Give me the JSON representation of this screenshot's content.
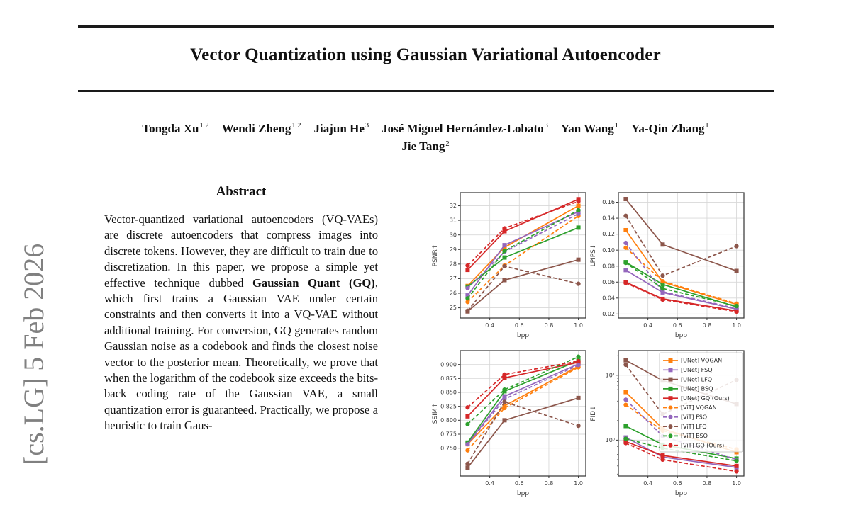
{
  "watermark": {
    "text": "[cs.LG] 5 Feb 2026",
    "color": "#808080"
  },
  "title": "Vector Quantization using Gaussian Variational Autoencoder",
  "authors": {
    "rows": [
      [
        {
          "name": "Tongda Xu",
          "sup": "1 2"
        },
        {
          "name": "Wendi Zheng",
          "sup": "1 2"
        },
        {
          "name": "Jiajun He",
          "sup": "3"
        },
        {
          "name": "José Miguel Hernández-Lobato",
          "sup": "3"
        },
        {
          "name": "Yan Wang",
          "sup": "1"
        },
        {
          "name": "Ya-Qin Zhang",
          "sup": "1"
        }
      ],
      [
        {
          "name": "Jie Tang",
          "sup": "2"
        }
      ]
    ]
  },
  "abstract": {
    "heading": "Abstract",
    "parts": [
      {
        "text": "Vector-quantized variational autoencoders (VQ-VAEs) are discrete autoencoders that compress images into discrete tokens. However, they are difficult to train due to discretization. In this paper, we propose a simple yet effective technique dubbed ",
        "bold": false
      },
      {
        "text": "Gaussian Quant (GQ)",
        "bold": true
      },
      {
        "text": ", which first trains a Gaussian VAE under certain constraints and then converts it into a VQ-VAE without additional training. For conversion, GQ generates random Gaussian noise as a codebook and finds the closest noise vector to the posterior mean. Theoretically, we prove that when the logarithm of the codebook size exceeds the bits-back coding rate of the Gaussian VAE, a small quantization error is guaranteed. Practically, we propose a heuristic to train Gaus-",
        "bold": false
      }
    ]
  },
  "series_defs": [
    {
      "name": "[UNet] VQGAN",
      "color": "#ff7f0e",
      "dashed": false,
      "marker": "square"
    },
    {
      "name": "[UNet] FSQ",
      "color": "#9467bd",
      "dashed": false,
      "marker": "square"
    },
    {
      "name": "[UNet] LFQ",
      "color": "#8c564b",
      "dashed": false,
      "marker": "square"
    },
    {
      "name": "[UNet] BSQ",
      "color": "#2ca02c",
      "dashed": false,
      "marker": "square"
    },
    {
      "name": "[UNet] GQ (Ours)",
      "color": "#d62728",
      "dashed": false,
      "marker": "square"
    },
    {
      "name": "[ViT] VQGAN",
      "color": "#ff7f0e",
      "dashed": true,
      "marker": "circle"
    },
    {
      "name": "[ViT] FSQ",
      "color": "#9467bd",
      "dashed": true,
      "marker": "circle"
    },
    {
      "name": "[ViT] LFQ",
      "color": "#8c564b",
      "dashed": true,
      "marker": "circle"
    },
    {
      "name": "[ViT] BSQ",
      "color": "#2ca02c",
      "dashed": true,
      "marker": "circle"
    },
    {
      "name": "[ViT] GQ (Ours)",
      "color": "#d62728",
      "dashed": true,
      "marker": "circle"
    }
  ],
  "chart_data": [
    {
      "type": "line",
      "name": "psnr",
      "grid": true,
      "log": false,
      "legend": false,
      "xlabel": "bpp",
      "ylabel": "PSNR↑",
      "x": [
        0.25,
        0.5,
        1.0
      ],
      "xlim": [
        0.2,
        1.05
      ],
      "xticks": [
        0.4,
        0.6,
        0.8,
        1.0
      ],
      "xtick_labels": [
        "0.4",
        "0.6",
        "0.8",
        "1.0"
      ],
      "ylim": [
        24.3,
        32.9
      ],
      "yticks": [
        25,
        26,
        27,
        28,
        29,
        30,
        31,
        32
      ],
      "ytick_labels": [
        "25",
        "26",
        "27",
        "28",
        "29",
        "30",
        "31",
        "32"
      ],
      "series": [
        {
          "name": "[UNet] VQGAN",
          "values": [
            26.5,
            29.15,
            32.0
          ]
        },
        {
          "name": "[UNet] FSQ",
          "values": [
            25.85,
            29.3,
            31.6
          ]
        },
        {
          "name": "[UNet] LFQ",
          "values": [
            24.75,
            26.9,
            28.3
          ]
        },
        {
          "name": "[UNet] BSQ",
          "values": [
            26.45,
            28.45,
            30.5
          ]
        },
        {
          "name": "[UNet] GQ (Ours)",
          "values": [
            27.6,
            30.25,
            32.45
          ]
        },
        {
          "name": "[ViT] VQGAN",
          "values": [
            25.4,
            27.9,
            31.3
          ]
        },
        {
          "name": "[ViT] FSQ",
          "values": [
            26.35,
            28.85,
            31.45
          ]
        },
        {
          "name": "[ViT] LFQ",
          "values": [
            24.8,
            27.85,
            26.65
          ]
        },
        {
          "name": "[ViT] BSQ",
          "values": [
            25.65,
            28.9,
            31.7
          ]
        },
        {
          "name": "[ViT] GQ (Ours)",
          "values": [
            27.9,
            30.45,
            32.3
          ]
        }
      ]
    },
    {
      "type": "line",
      "name": "lpips",
      "grid": true,
      "log": false,
      "legend": false,
      "xlabel": "bpp",
      "ylabel": "LPIPS↓",
      "x": [
        0.25,
        0.5,
        1.0
      ],
      "xlim": [
        0.2,
        1.05
      ],
      "xticks": [
        0.4,
        0.6,
        0.8,
        1.0
      ],
      "xtick_labels": [
        "0.4",
        "0.6",
        "0.8",
        "1.0"
      ],
      "ylim": [
        0.015,
        0.172
      ],
      "yticks": [
        0.02,
        0.04,
        0.06,
        0.08,
        0.1,
        0.12,
        0.14,
        0.16
      ],
      "ytick_labels": [
        "0.02",
        "0.04",
        "0.06",
        "0.08",
        "0.10",
        "0.12",
        "0.14",
        "0.16"
      ],
      "series": [
        {
          "name": "[UNet] VQGAN",
          "values": [
            0.125,
            0.06,
            0.032
          ]
        },
        {
          "name": "[UNet] FSQ",
          "values": [
            0.075,
            0.047,
            0.026
          ]
        },
        {
          "name": "[UNet] LFQ",
          "values": [
            0.164,
            0.107,
            0.074
          ]
        },
        {
          "name": "[UNet] BSQ",
          "values": [
            0.085,
            0.057,
            0.029
          ]
        },
        {
          "name": "[UNet] GQ (Ours)",
          "values": [
            0.06,
            0.039,
            0.024
          ]
        },
        {
          "name": "[ViT] VQGAN",
          "values": [
            0.103,
            0.061,
            0.033
          ]
        },
        {
          "name": "[ViT] FSQ",
          "values": [
            0.109,
            0.048,
            0.027
          ]
        },
        {
          "name": "[ViT] LFQ",
          "values": [
            0.143,
            0.068,
            0.105
          ]
        },
        {
          "name": "[ViT] BSQ",
          "values": [
            0.084,
            0.052,
            0.03
          ]
        },
        {
          "name": "[ViT] GQ (Ours)",
          "values": [
            0.059,
            0.038,
            0.023
          ]
        }
      ]
    },
    {
      "type": "line",
      "name": "ssim",
      "grid": true,
      "log": false,
      "legend": false,
      "xlabel": "bpp",
      "ylabel": "SSIM↑",
      "x": [
        0.25,
        0.5,
        1.0
      ],
      "xlim": [
        0.2,
        1.05
      ],
      "xticks": [
        0.4,
        0.6,
        0.8,
        1.0
      ],
      "xtick_labels": [
        "0.4",
        "0.6",
        "0.8",
        "1.0"
      ],
      "ylim": [
        0.7,
        0.925
      ],
      "yticks": [
        0.75,
        0.775,
        0.8,
        0.825,
        0.85,
        0.875,
        0.9
      ],
      "ytick_labels": [
        "0.750",
        "0.775",
        "0.800",
        "0.825",
        "0.850",
        "0.875",
        "0.900"
      ],
      "series": [
        {
          "name": "[UNet] VQGAN",
          "values": [
            0.757,
            0.826,
            0.897
          ]
        },
        {
          "name": "[UNet] FSQ",
          "values": [
            0.758,
            0.843,
            0.901
          ]
        },
        {
          "name": "[UNet] LFQ",
          "values": [
            0.715,
            0.8,
            0.84
          ]
        },
        {
          "name": "[UNet] BSQ",
          "values": [
            0.76,
            0.852,
            0.907
          ]
        },
        {
          "name": "[UNet] GQ (Ours)",
          "values": [
            0.807,
            0.876,
            0.904
          ]
        },
        {
          "name": "[ViT] VQGAN",
          "values": [
            0.746,
            0.822,
            0.895
          ]
        },
        {
          "name": "[ViT] FSQ",
          "values": [
            0.757,
            0.838,
            0.899
          ]
        },
        {
          "name": "[ViT] LFQ",
          "values": [
            0.722,
            0.833,
            0.79
          ]
        },
        {
          "name": "[ViT] BSQ",
          "values": [
            0.793,
            0.855,
            0.914
          ]
        },
        {
          "name": "[ViT] GQ (Ours)",
          "values": [
            0.823,
            0.882,
            0.906
          ]
        }
      ]
    },
    {
      "type": "line",
      "name": "fid",
      "grid": true,
      "log": true,
      "legend": true,
      "legend_position": "upper right",
      "xlabel": "bpp",
      "ylabel": "FID↓",
      "x": [
        0.25,
        0.5,
        1.0
      ],
      "xlim": [
        0.2,
        1.05
      ],
      "xticks": [
        0.4,
        0.6,
        0.8,
        1.0
      ],
      "xtick_labels": [
        "0.4",
        "0.6",
        "0.8",
        "1.0"
      ],
      "ylim": [
        0.28,
        24
      ],
      "yticks": [
        10,
        1
      ],
      "ytick_labels": [
        "10¹",
        "10⁰"
      ],
      "series": [
        {
          "name": "[UNet] VQGAN",
          "values": [
            5.5,
            1.5,
            0.65
          ]
        },
        {
          "name": "[UNet] FSQ",
          "values": [
            1.1,
            0.55,
            0.38
          ]
        },
        {
          "name": "[UNet] LFQ",
          "values": [
            17.0,
            8.3,
            3.6
          ]
        },
        {
          "name": "[UNet] BSQ",
          "values": [
            1.65,
            0.85,
            0.52
          ]
        },
        {
          "name": "[UNet] GQ (Ours)",
          "values": [
            0.95,
            0.58,
            0.4
          ]
        },
        {
          "name": "[ViT] VQGAN",
          "values": [
            3.5,
            1.4,
            0.72
          ]
        },
        {
          "name": "[ViT] FSQ",
          "values": [
            4.2,
            1.15,
            0.5
          ]
        },
        {
          "name": "[ViT] LFQ",
          "values": [
            14.5,
            2.5,
            8.5
          ]
        },
        {
          "name": "[ViT] BSQ",
          "values": [
            1.05,
            0.75,
            0.48
          ]
        },
        {
          "name": "[ViT] GQ (Ours)",
          "values": [
            0.9,
            0.5,
            0.33
          ]
        }
      ]
    }
  ]
}
